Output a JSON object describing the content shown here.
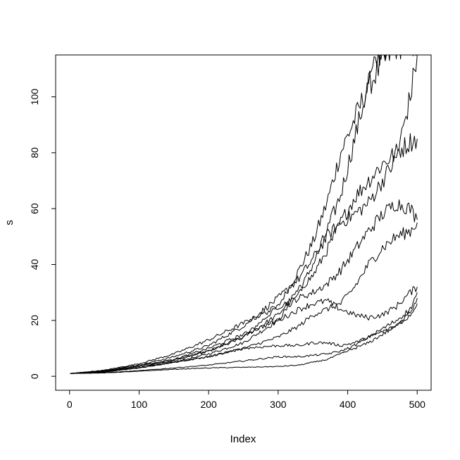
{
  "chart_data": {
    "type": "line",
    "xlabel": "Index",
    "ylabel": "s",
    "xlim": [
      -20,
      520
    ],
    "ylim": [
      -5,
      115
    ],
    "x_ticks": [
      0,
      100,
      200,
      300,
      400,
      500
    ],
    "y_ticks": [
      0,
      20,
      40,
      60,
      80,
      100
    ],
    "grid": false,
    "legend": "none",
    "line_color": "#000000",
    "series": [
      {
        "x": [
          1,
          50,
          100,
          150,
          200,
          250,
          300,
          330,
          350,
          370,
          390,
          410,
          430,
          450,
          470,
          490,
          500
        ],
        "values": [
          1,
          2,
          4,
          6,
          9,
          14,
          25,
          38,
          48,
          62,
          80,
          92,
          104,
          112,
          118,
          120,
          120
        ]
      },
      {
        "x": [
          1,
          50,
          100,
          150,
          200,
          250,
          300,
          330,
          350,
          370,
          390,
          410,
          430,
          450,
          470,
          490,
          500
        ],
        "values": [
          1,
          1.8,
          3,
          5,
          8,
          12,
          20,
          30,
          40,
          52,
          65,
          85,
          105,
          118,
          120,
          120,
          120
        ]
      },
      {
        "x": [
          1,
          50,
          100,
          150,
          200,
          250,
          300,
          330,
          350,
          370,
          390,
          410,
          430,
          450,
          470,
          490,
          500
        ],
        "values": [
          1,
          2,
          3.5,
          5.5,
          9,
          14,
          22,
          31,
          36,
          45,
          55,
          64,
          70,
          76,
          80,
          84,
          85
        ]
      },
      {
        "x": [
          1,
          50,
          100,
          150,
          200,
          250,
          300,
          330,
          350,
          370,
          390,
          410,
          430,
          450,
          470,
          490,
          500
        ],
        "values": [
          1,
          2,
          4,
          7,
          11,
          18,
          28,
          35,
          42,
          50,
          55,
          58,
          62,
          70,
          78,
          100,
          115
        ]
      },
      {
        "x": [
          1,
          50,
          100,
          150,
          200,
          250,
          300,
          330,
          350,
          370,
          390,
          410,
          430,
          450,
          470,
          490,
          500
        ],
        "values": [
          1,
          2.2,
          4.5,
          8,
          13,
          19,
          25,
          28,
          30,
          33,
          38,
          45,
          52,
          58,
          62,
          60,
          56
        ]
      },
      {
        "x": [
          1,
          50,
          100,
          150,
          200,
          250,
          300,
          330,
          350,
          370,
          390,
          410,
          430,
          450,
          470,
          490,
          500
        ],
        "values": [
          1,
          1.5,
          3,
          5,
          7,
          10,
          14,
          18,
          22,
          24,
          26,
          32,
          40,
          46,
          50,
          52,
          55
        ]
      },
      {
        "x": [
          1,
          50,
          100,
          150,
          200,
          250,
          300,
          330,
          350,
          370,
          390,
          410,
          430,
          450,
          470,
          490,
          500
        ],
        "values": [
          1,
          1.8,
          3.5,
          6,
          10,
          15,
          20,
          24,
          26,
          27,
          24,
          22,
          21,
          22,
          25,
          30,
          32
        ]
      },
      {
        "x": [
          1,
          50,
          100,
          150,
          200,
          250,
          300,
          330,
          350,
          370,
          390,
          410,
          430,
          450,
          470,
          490,
          500
        ],
        "values": [
          1,
          1.6,
          3,
          5,
          7,
          10,
          11,
          11,
          12,
          12,
          11,
          12,
          14,
          16,
          18,
          23,
          28
        ]
      },
      {
        "x": [
          1,
          50,
          100,
          150,
          200,
          250,
          300,
          330,
          350,
          370,
          390,
          410,
          430,
          450,
          470,
          490,
          500
        ],
        "values": [
          1,
          1.3,
          2,
          3,
          4,
          5.5,
          7,
          7,
          7.5,
          8,
          9,
          11,
          14,
          17,
          20,
          24,
          30
        ]
      },
      {
        "x": [
          1,
          50,
          100,
          150,
          200,
          250,
          300,
          330,
          350,
          370,
          390,
          410,
          430,
          450,
          470,
          490,
          500
        ],
        "values": [
          1,
          1.2,
          1.8,
          2.5,
          3,
          3.2,
          3.5,
          4,
          5,
          6,
          8,
          10,
          12,
          15,
          18,
          22,
          26
        ]
      }
    ]
  }
}
